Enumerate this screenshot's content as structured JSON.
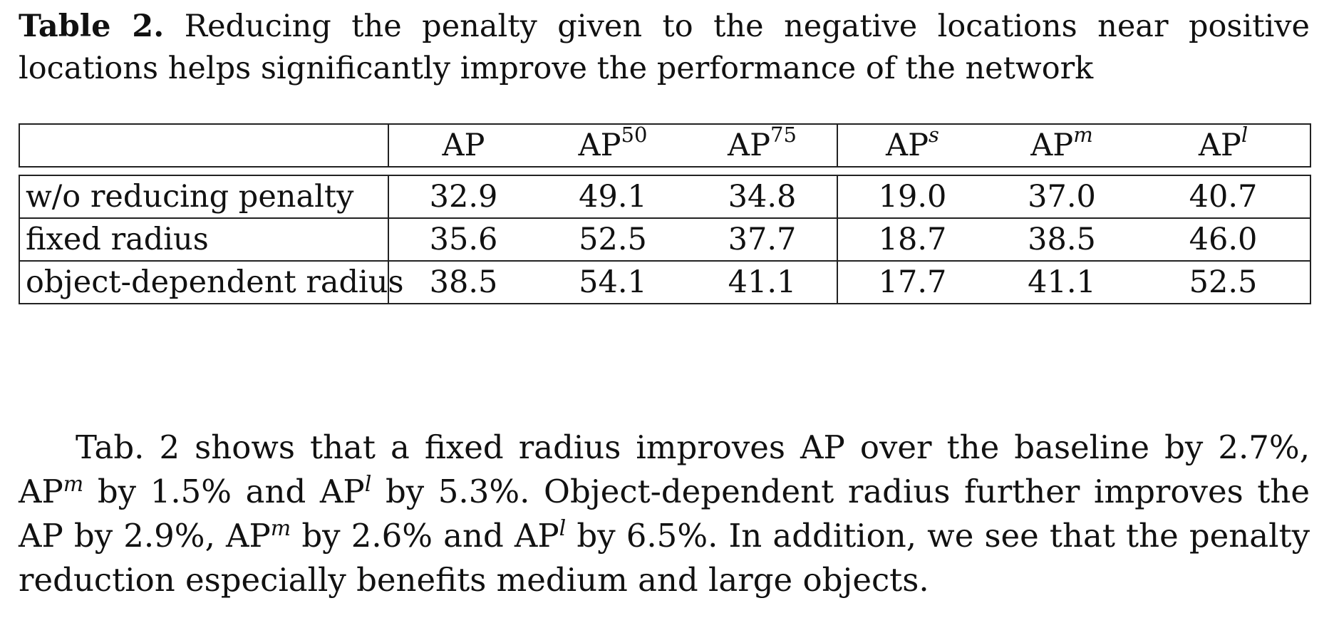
{
  "caption": {
    "label": "Table 2.",
    "text": "Reducing the penalty given to the negative locations near positive locations helps significantly improve the performance of the network"
  },
  "table": {
    "columns": [
      {
        "base": "AP",
        "sup": ""
      },
      {
        "base": "AP",
        "sup": "50"
      },
      {
        "base": "AP",
        "sup": "75"
      },
      {
        "base": "AP",
        "sup": "s"
      },
      {
        "base": "AP",
        "sup": "m"
      },
      {
        "base": "AP",
        "sup": "l"
      }
    ],
    "rows": [
      {
        "label": "w/o reducing penalty",
        "values": [
          "32.9",
          "49.1",
          "34.8",
          "19.0",
          "37.0",
          "40.7"
        ]
      },
      {
        "label": "fixed radius",
        "values": [
          "35.6",
          "52.5",
          "37.7",
          "18.7",
          "38.5",
          "46.0"
        ]
      },
      {
        "label": "object-dependent radius",
        "values": [
          "38.5",
          "54.1",
          "41.1",
          "17.7",
          "41.1",
          "52.5"
        ]
      }
    ]
  },
  "paragraph": {
    "s1": "Tab. 2 shows that a fixed radius improves AP over the baseline by 2.7%, AP",
    "s1_sup": "m",
    "s2": " by 1.5% and AP",
    "s2_sup": "l",
    "s3": " by 5.3%. Object-dependent radius further improves the AP by 2.9%, AP",
    "s3_sup": "m",
    "s4": " by 2.6% and AP",
    "s4_sup": "l",
    "s5": " by 6.5%. In addition, we see that the penalty reduction especially benefits medium and large objects."
  }
}
